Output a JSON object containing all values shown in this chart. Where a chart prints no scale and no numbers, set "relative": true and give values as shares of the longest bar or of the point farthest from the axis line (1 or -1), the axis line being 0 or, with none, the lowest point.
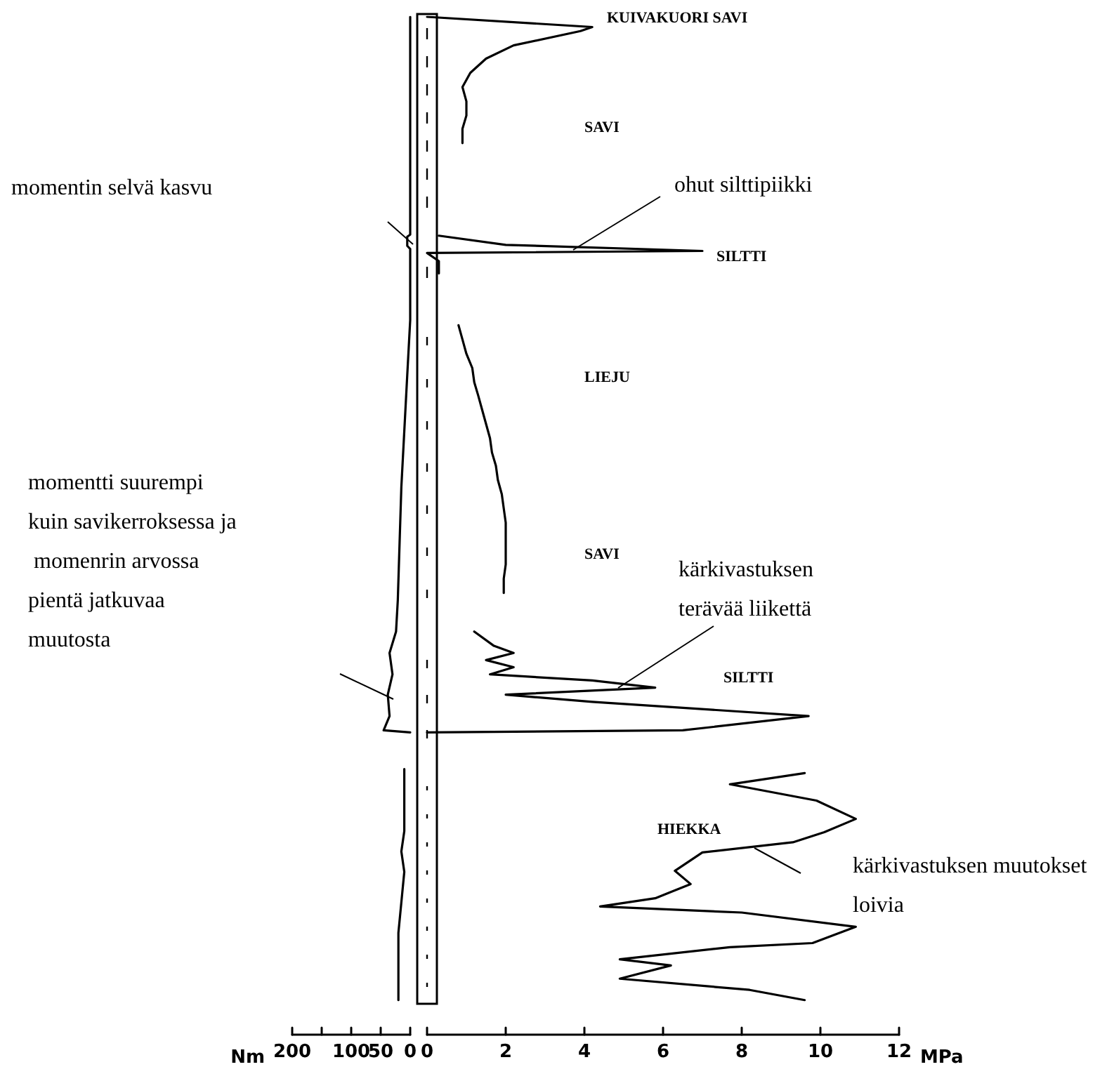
{
  "chart_data": [
    {
      "type": "line",
      "relative": true,
      "xlabel": "Nm",
      "xlim": [
        200,
        0
      ],
      "xticks": [
        200,
        {
          "value": 150,
          "label": null
        },
        100,
        50,
        0
      ],
      "tick_labels": "x",
      "marker": "none",
      "line_style": "solid",
      "series": [
        {
          "color": "#000000",
          "x": [
            0,
            0,
            5,
            5,
            0,
            0,
            5,
            10,
            15,
            18,
            21,
            24,
            35,
            30,
            38,
            35,
            45,
            0
          ],
          "values": [
            1.0,
            0.786,
            0.784,
            0.775,
            0.772,
            0.702,
            0.648,
            0.593,
            0.538,
            0.483,
            0.427,
            0.396,
            0.375,
            0.354,
            0.334,
            0.313,
            0.299,
            0.297
          ]
        },
        {
          "color": "#000000",
          "x": [
            10,
            10,
            15,
            10,
            20,
            20
          ],
          "values": [
            0.261,
            0.2,
            0.18,
            0.16,
            0.1,
            0.034
          ]
        }
      ],
      "annotations": [
        "momentin selvä kasvu",
        "momentti suurempi kuin savikerroksessa ja momenrin arvossa pientä jatkuvaa muutosta"
      ]
    },
    {
      "type": "line",
      "relative": true,
      "xlabel": "MPa",
      "xlim": [
        0,
        12
      ],
      "xticks": [
        0,
        2,
        4,
        6,
        8,
        10,
        12
      ],
      "tick_labels": "x",
      "marker": "none",
      "line_style": "solid",
      "series": [
        {
          "color": "#000000",
          "x": [
            0,
            4.2,
            3.9,
            2.2,
            1.5,
            1.1,
            0.9,
            1.0,
            1.0,
            0.9,
            0.9
          ],
          "values": [
            1.0,
            0.99,
            0.986,
            0.972,
            0.959,
            0.945,
            0.931,
            0.917,
            0.903,
            0.89,
            0.876
          ]
        },
        {
          "color": "#000000",
          "x": [
            0.3,
            2.0,
            7.0,
            0,
            0.3,
            0.3
          ],
          "values": [
            0.785,
            0.776,
            0.77,
            0.768,
            0.76,
            0.748
          ]
        },
        {
          "color": "#000000",
          "x": [
            0.8,
            0.9,
            1.0,
            1.15,
            1.2,
            1.3,
            1.4,
            1.5,
            1.6,
            1.65,
            1.75,
            1.8,
            1.9,
            1.95,
            2.0,
            2.0,
            2.0,
            2.0,
            1.95,
            1.95
          ],
          "values": [
            0.697,
            0.683,
            0.669,
            0.655,
            0.641,
            0.628,
            0.614,
            0.6,
            0.586,
            0.572,
            0.559,
            0.545,
            0.531,
            0.517,
            0.503,
            0.49,
            0.476,
            0.462,
            0.448,
            0.434
          ]
        },
        {
          "color": "#000000",
          "x": [
            1.2,
            1.7,
            2.2,
            1.5,
            2.2,
            1.6,
            4.2,
            5.8,
            2.0,
            4.2,
            9.7,
            6.5,
            0
          ],
          "values": [
            0.396,
            0.382,
            0.375,
            0.368,
            0.361,
            0.354,
            0.348,
            0.341,
            0.334,
            0.327,
            0.313,
            0.299,
            0.297
          ]
        },
        {
          "color": "#000000",
          "x": [
            9.6,
            7.7,
            9.9,
            10.9,
            10.1,
            9.3,
            7.0,
            6.3,
            6.7,
            5.8,
            4.4,
            8.0,
            10.9,
            9.8,
            7.7,
            4.9,
            6.2,
            4.9,
            8.2,
            9.6
          ],
          "values": [
            0.257,
            0.246,
            0.23,
            0.212,
            0.199,
            0.189,
            0.179,
            0.161,
            0.148,
            0.134,
            0.126,
            0.12,
            0.106,
            0.09,
            0.086,
            0.074,
            0.068,
            0.055,
            0.044,
            0.034
          ]
        }
      ],
      "annotations": [
        "KUIVAKUORI SAVI",
        "SAVI",
        "SILTTI",
        "LIEJU",
        "SAVI",
        "SILTTI",
        "HIEKKA",
        "ohut silttipiikki",
        "kärkivastuksen terävää liikettä",
        "kärkivastuksen muutokset loivia"
      ]
    }
  ]
}
